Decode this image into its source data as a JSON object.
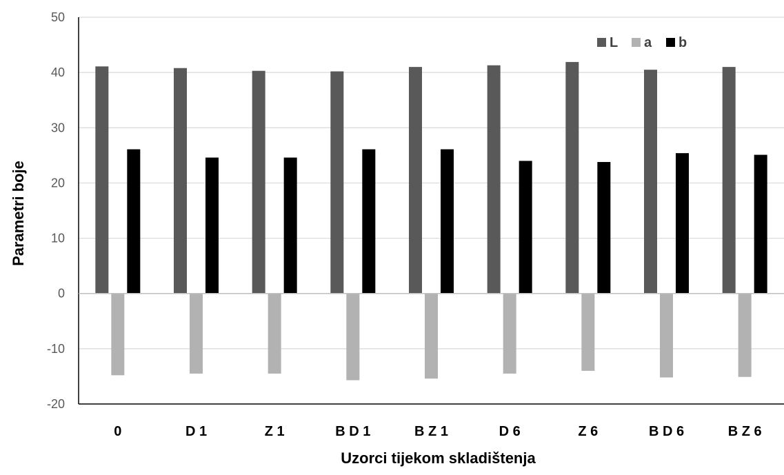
{
  "chart_data": {
    "type": "bar",
    "title": "",
    "xlabel": "Uzorci tijekom skladištenja",
    "ylabel": "Parametri boje",
    "ylim": [
      -20,
      50
    ],
    "yticks": [
      50,
      40,
      30,
      20,
      10,
      0,
      -10,
      -20
    ],
    "grid": true,
    "legend_position": "top-right",
    "categories": [
      "0",
      "D 1",
      "Z 1",
      "B D 1",
      "B Z 1",
      "D 6",
      "Z 6",
      "B D 6",
      "B Z 6"
    ],
    "series": [
      {
        "name": "L",
        "color": "#595959",
        "values": [
          41.1,
          40.8,
          40.3,
          40.2,
          41.0,
          41.3,
          41.9,
          40.5,
          41.0
        ]
      },
      {
        "name": "a",
        "color": "#b2b2b2",
        "values": [
          -14.8,
          -14.5,
          -14.5,
          -15.7,
          -15.4,
          -14.5,
          -14.0,
          -15.2,
          -15.1
        ]
      },
      {
        "name": "b",
        "color": "#000000",
        "values": [
          26.1,
          24.6,
          24.6,
          26.1,
          26.1,
          24.0,
          23.8,
          25.4,
          25.1
        ]
      }
    ]
  }
}
